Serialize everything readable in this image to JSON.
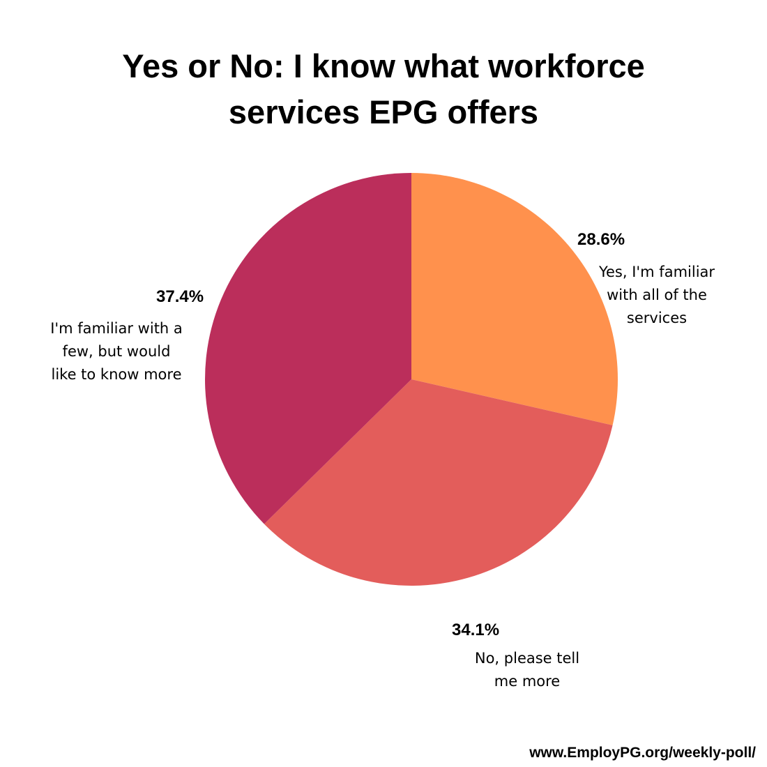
{
  "chart_data": {
    "type": "pie",
    "title": "Yes or No: I know what workforce services EPG offers",
    "title_lines": [
      "Yes or No: I know what workforce",
      "services EPG offers"
    ],
    "slices": [
      {
        "label": "Yes, I'm familiar with all of the services",
        "label_lines": [
          "Yes, I'm familiar",
          "with all of the",
          "services"
        ],
        "value": 28.6,
        "value_label": "28.6%",
        "color": "#ff914d"
      },
      {
        "label": "No, please tell me more",
        "label_lines": [
          "No, please tell",
          "me more"
        ],
        "value": 34.1,
        "value_label": "34.1%",
        "color": "#e35d5b"
      },
      {
        "label": "I'm familiar with a few, but would like to know more",
        "label_lines": [
          "I'm familiar with a",
          "few, but would",
          "like to know more"
        ],
        "value": 37.4,
        "value_label": "37.4%",
        "color": "#bb2e5b"
      }
    ],
    "start_angle": "12 o'clock",
    "direction": "clockwise",
    "legend": "none"
  },
  "footer": "www.EmployPG.org/weekly-poll/"
}
